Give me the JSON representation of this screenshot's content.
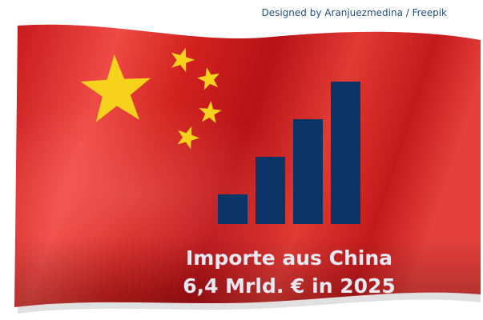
{
  "credit": "Designed by Aranjuezmedina / Freepik",
  "headline": {
    "line1": "Importe aus China",
    "line2": "6,4 Mrld. € in 2025"
  }
}
